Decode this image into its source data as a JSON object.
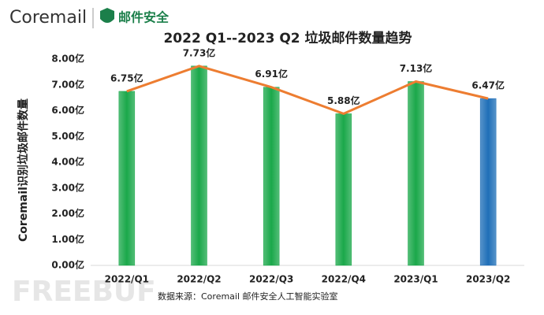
{
  "logo": {
    "brand": "Coremail",
    "product": "邮件安全"
  },
  "watermark": "FREEBUF",
  "chart_data": {
    "type": "bar",
    "title": "2022 Q1--2023 Q2 垃圾邮件数量趋势",
    "y_label": "Coremail识别垃圾邮件数量",
    "source": "数据来源：Coremail 邮件安全人工智能实验室",
    "categories": [
      "2022/Q1",
      "2022/Q2",
      "2022/Q3",
      "2022/Q4",
      "2023/Q1",
      "2023/Q2"
    ],
    "values": [
      6.75,
      7.73,
      6.91,
      5.88,
      7.13,
      6.47
    ],
    "value_labels": [
      "6.75亿",
      "7.73亿",
      "6.91亿",
      "5.88亿",
      "7.13亿",
      "6.47亿"
    ],
    "colors": [
      "#1aa84a",
      "#1aa84a",
      "#1aa84a",
      "#1aa84a",
      "#1aa84a",
      "#1f6fb8"
    ],
    "trend_line_color": "#ed7d31",
    "ylim": [
      0,
      8
    ],
    "yticks": [
      {
        "value": 0,
        "label": "0.00亿"
      },
      {
        "value": 1,
        "label": "1.00亿"
      },
      {
        "value": 2,
        "label": "2.00亿"
      },
      {
        "value": 3,
        "label": "3.00亿"
      },
      {
        "value": 4,
        "label": "4.00亿"
      },
      {
        "value": 5,
        "label": "5.00亿"
      },
      {
        "value": 6,
        "label": "6.00亿"
      },
      {
        "value": 7,
        "label": "7.00亿"
      },
      {
        "value": 8,
        "label": "8.00亿"
      }
    ]
  }
}
